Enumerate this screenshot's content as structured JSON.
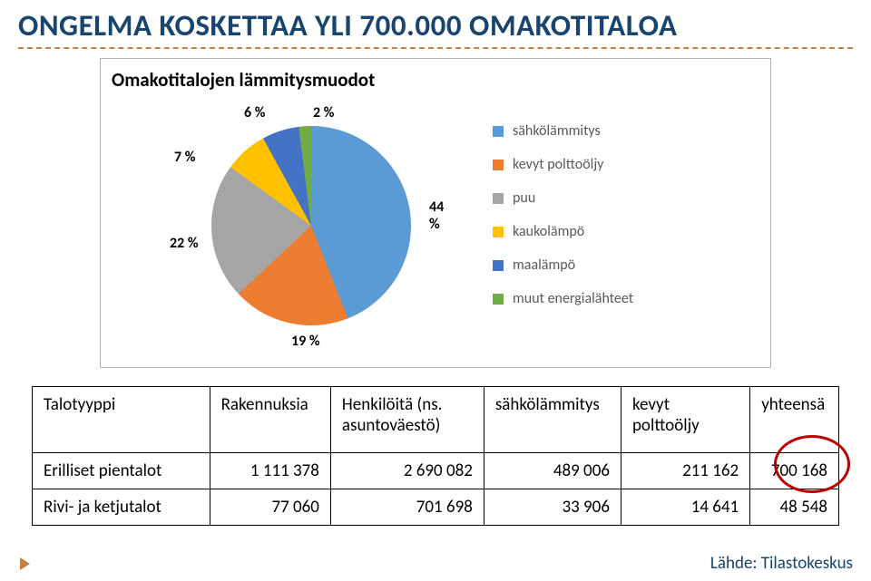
{
  "title": "ONGELMA KOSKETTAA YLI 700.000 OMAKOTITALOA",
  "chart": {
    "title": "Omakotitalojen lämmitysmuodot",
    "type": "pie",
    "slices": [
      {
        "label": "sähkölämmitys",
        "percent": 44,
        "color": "#5b9bd5"
      },
      {
        "label": "kevyt polttoöljy",
        "percent": 19,
        "color": "#ed7d31"
      },
      {
        "label": "puu",
        "percent": 22,
        "color": "#a5a5a5"
      },
      {
        "label": "kaukolämpö",
        "percent": 7,
        "color": "#ffc000"
      },
      {
        "label": "maalämpö",
        "percent": 6,
        "color": "#4472c4"
      },
      {
        "label": "muut energialähteet",
        "percent": 2,
        "color": "#70ad47"
      }
    ],
    "callouts": {
      "c44": "44 %",
      "c19": "19 %",
      "c22": "22 %",
      "c7": "7 %",
      "c6": "6 %",
      "c2": "2 %"
    },
    "background_color": "#ffffff",
    "title_fontsize": 21,
    "label_fontsize": 16,
    "callout_fontsize": 16,
    "callout_fontweight": 700
  },
  "table": {
    "headers": [
      "Talotyyppi",
      "Rakennuksia",
      "Henkilöitä (ns. asuntoväestö)",
      "sähkölämmitys",
      "kevyt polttoöljy",
      "yhteensä"
    ],
    "rows": [
      [
        "Erilliset pientalot",
        "1 111 378",
        "2 690 082",
        "489 006",
        "211 162",
        "700 168"
      ],
      [
        "Rivi- ja ketjutalot",
        "77 060",
        "701 698",
        "33 906",
        "14 641",
        "48 548"
      ]
    ],
    "col_widths_pct": [
      22,
      15,
      19,
      17,
      16,
      11
    ]
  },
  "source": "Lähde: Tilastokeskus",
  "colors": {
    "title_color": "#184470",
    "rule_color": "#c67f45",
    "circle_color": "#c00000"
  }
}
